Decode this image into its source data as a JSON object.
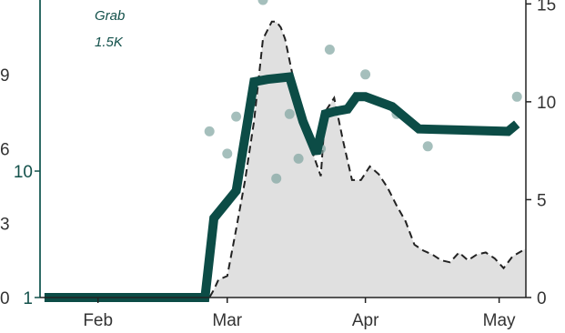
{
  "chart_data": {
    "type": "line",
    "x_ticks": [
      "Feb",
      "Mar",
      "Apr",
      "May"
    ],
    "x_tick_dates": [
      "2020-02-01",
      "2020-03-01",
      "2020-04-01",
      "2020-05-01"
    ],
    "x_range": [
      "2020-01-19",
      "2020-05-07"
    ],
    "left_axis_outer": {
      "ticks": [
        "0",
        "3",
        "6",
        "9"
      ],
      "tick_values": [
        0,
        3,
        6,
        9
      ],
      "range": [
        0,
        12
      ]
    },
    "left_axis_inner": {
      "ticks": [
        "1",
        "10"
      ],
      "tick_values": [
        1,
        10
      ],
      "color": "#12504a",
      "scale": "log"
    },
    "right_axis": {
      "ticks": [
        "0",
        "5",
        "10",
        "15"
      ],
      "tick_values": [
        0,
        5,
        10,
        15
      ],
      "range": [
        0,
        15.2
      ]
    },
    "legend": {
      "label": "Grab",
      "value": "1.5K"
    },
    "grid": false,
    "series": [
      {
        "type": "area",
        "axis": "right",
        "color": "#e0e0e0",
        "x": [
          "2020-01-20",
          "2020-02-01",
          "2020-02-15",
          "2020-02-24",
          "2020-02-26",
          "2020-02-27",
          "2020-02-28",
          "2020-03-01",
          "2020-03-03",
          "2020-03-05",
          "2020-03-07",
          "2020-03-09",
          "2020-03-11",
          "2020-03-12",
          "2020-03-13",
          "2020-03-14",
          "2020-03-16",
          "2020-03-18",
          "2020-03-20",
          "2020-03-22",
          "2020-03-23",
          "2020-03-25",
          "2020-03-27",
          "2020-03-29",
          "2020-03-31",
          "2020-04-02",
          "2020-04-04",
          "2020-04-06",
          "2020-04-08",
          "2020-04-10",
          "2020-04-12",
          "2020-04-14",
          "2020-04-16",
          "2020-04-18",
          "2020-04-20",
          "2020-04-22",
          "2020-04-24",
          "2020-04-26",
          "2020-04-28",
          "2020-04-30",
          "2020-05-02",
          "2020-05-04",
          "2020-05-07"
        ],
        "values": [
          0,
          0,
          0,
          0,
          0,
          0.4,
          0.9,
          1.1,
          3.5,
          6.0,
          9.0,
          13.2,
          14.1,
          14.1,
          13.8,
          13.2,
          11.0,
          9.0,
          7.5,
          6.2,
          9.5,
          10.2,
          8.0,
          6.0,
          6.0,
          6.7,
          6.3,
          5.6,
          4.7,
          3.9,
          2.7,
          2.4,
          2.2,
          1.9,
          1.8,
          2.3,
          1.9,
          2.2,
          2.3,
          2.0,
          1.5,
          2.1,
          2.5
        ]
      },
      {
        "type": "line",
        "axis": "right",
        "style": "dashed",
        "color": "#222222",
        "x": [
          "2020-01-20",
          "2020-02-01",
          "2020-02-15",
          "2020-02-24",
          "2020-02-26",
          "2020-02-27",
          "2020-02-28",
          "2020-03-01",
          "2020-03-03",
          "2020-03-05",
          "2020-03-07",
          "2020-03-09",
          "2020-03-11",
          "2020-03-12",
          "2020-03-13",
          "2020-03-14",
          "2020-03-16",
          "2020-03-18",
          "2020-03-20",
          "2020-03-22",
          "2020-03-23",
          "2020-03-25",
          "2020-03-27",
          "2020-03-29",
          "2020-03-31",
          "2020-04-02",
          "2020-04-04",
          "2020-04-06",
          "2020-04-08",
          "2020-04-10",
          "2020-04-12",
          "2020-04-14",
          "2020-04-16",
          "2020-04-18",
          "2020-04-20",
          "2020-04-22",
          "2020-04-24",
          "2020-04-26",
          "2020-04-28",
          "2020-04-30",
          "2020-05-02",
          "2020-05-04",
          "2020-05-07"
        ],
        "values": [
          0,
          0,
          0,
          0,
          0,
          0.4,
          0.9,
          1.1,
          3.5,
          6.0,
          9.0,
          13.2,
          14.1,
          14.1,
          13.8,
          13.2,
          11.0,
          9.0,
          7.5,
          6.2,
          9.5,
          10.2,
          8.0,
          6.0,
          6.0,
          6.7,
          6.3,
          5.6,
          4.7,
          3.9,
          2.7,
          2.4,
          2.2,
          1.9,
          1.8,
          2.3,
          1.9,
          2.2,
          2.3,
          2.0,
          1.5,
          2.1,
          2.5
        ]
      },
      {
        "type": "line",
        "axis": "left",
        "color": "#0c4c46",
        "x": [
          "2020-01-20",
          "2020-02-25",
          "2020-02-27",
          "2020-03-03",
          "2020-03-07",
          "2020-03-10",
          "2020-03-15",
          "2020-03-18",
          "2020-03-21",
          "2020-03-23",
          "2020-03-25",
          "2020-03-28",
          "2020-03-30",
          "2020-04-01",
          "2020-04-07",
          "2020-04-13",
          "2020-05-03",
          "2020-05-05"
        ],
        "values": [
          0,
          0,
          3.2,
          4.3,
          8.7,
          8.8,
          8.9,
          7.1,
          5.8,
          7.4,
          7.5,
          7.6,
          8.1,
          8.1,
          7.7,
          6.8,
          6.7,
          7.0
        ]
      },
      {
        "type": "scatter",
        "axis": "left",
        "color": "#7fa4a0",
        "x": [
          "2020-02-26",
          "2020-03-01",
          "2020-03-03",
          "2020-03-09",
          "2020-03-12",
          "2020-03-15",
          "2020-03-17",
          "2020-03-22",
          "2020-03-24",
          "2020-04-01",
          "2020-04-08",
          "2020-04-15",
          "2020-05-05"
        ],
        "values": [
          6.7,
          5.8,
          7.3,
          12.0,
          4.8,
          7.4,
          5.6,
          6.0,
          10.0,
          9.0,
          7.4,
          6.1,
          8.1
        ]
      }
    ]
  }
}
